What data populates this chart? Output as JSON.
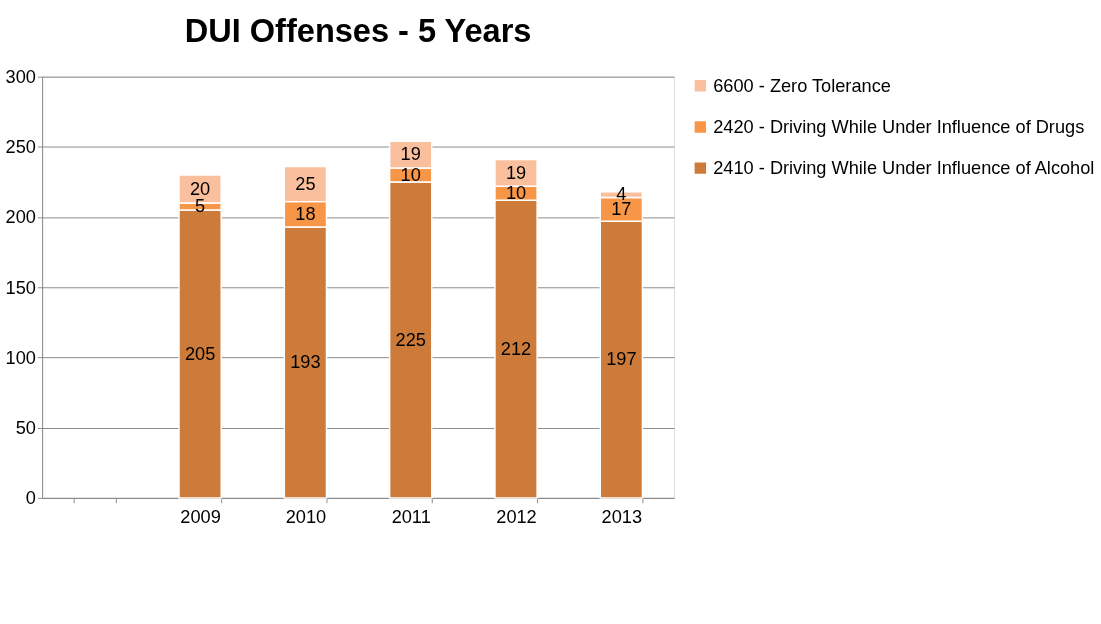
{
  "chart_data": {
    "type": "bar",
    "title": "DUI Offenses - 5 Years",
    "stacked": true,
    "categories": [
      null,
      "2009",
      "2010",
      "2011",
      "2012",
      "2013"
    ],
    "series": [
      {
        "name": "2410 - Driving While Under Influence of Alcohol",
        "color": "#cc7b3a",
        "values": [
          null,
          205,
          193,
          225,
          212,
          197
        ]
      },
      {
        "name": "2420 - Driving While Under Influence of Drugs",
        "color": "#f79646",
        "values": [
          null,
          5,
          18,
          10,
          10,
          17
        ]
      },
      {
        "name": "6600 - Zero Tolerance",
        "color": "#fac09e",
        "values": [
          null,
          20,
          25,
          19,
          19,
          4
        ]
      }
    ],
    "ylim": [
      0,
      300
    ],
    "yticks": [
      0,
      50,
      100,
      150,
      200,
      250,
      300
    ],
    "grid": "y",
    "legend": "right",
    "data_labels": true
  }
}
